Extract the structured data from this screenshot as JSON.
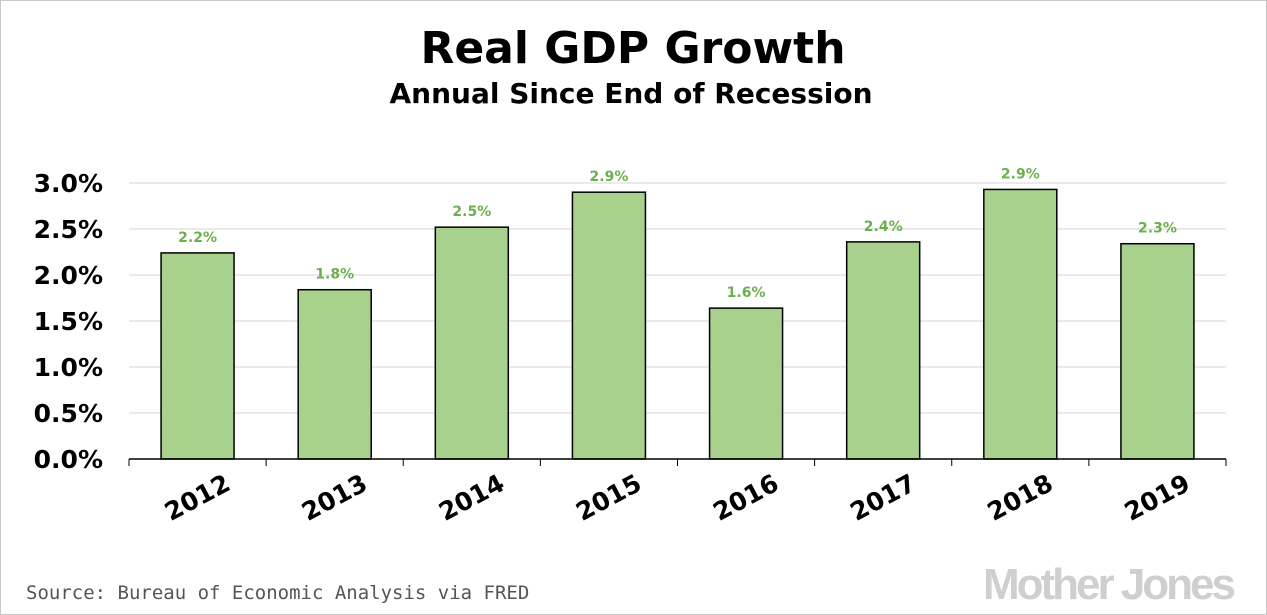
{
  "chart_data": {
    "type": "bar",
    "title": "Real GDP Growth",
    "subtitle": "Annual Since End of Recession",
    "categories": [
      "2012",
      "2013",
      "2014",
      "2015",
      "2016",
      "2017",
      "2018",
      "2019"
    ],
    "values": [
      2.24,
      1.84,
      2.52,
      2.9,
      1.64,
      2.36,
      2.93,
      2.34
    ],
    "data_labels": [
      "2.2%",
      "1.8%",
      "2.5%",
      "2.9%",
      "1.6%",
      "2.4%",
      "2.9%",
      "2.3%"
    ],
    "yticks": [
      "0.0%",
      "0.5%",
      "1.0%",
      "1.5%",
      "2.0%",
      "2.5%",
      "3.0%"
    ],
    "ytick_values": [
      0,
      0.5,
      1.0,
      1.5,
      2.0,
      2.5,
      3.0
    ],
    "ylim": [
      0,
      3.0
    ],
    "xlabel": "",
    "ylabel": "",
    "grid": true,
    "legend": "none",
    "colors": {
      "bar": "#a8d18d",
      "bar_stroke": "#000000",
      "data_label": "#6ab04c",
      "grid": "#e3e3e3"
    }
  },
  "source": "Source: Bureau of Economic Analysis via FRED",
  "logo": "Mother Jones"
}
